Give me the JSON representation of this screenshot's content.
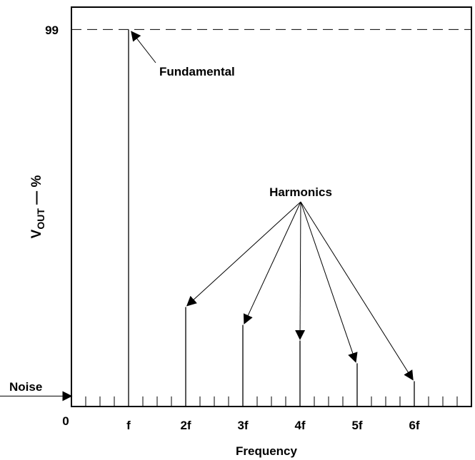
{
  "chart_data": {
    "type": "bar",
    "title": "",
    "xlabel": "Frequency",
    "ylabel": {
      "main": "V",
      "subscript": "OUT",
      "suffix": " — %"
    },
    "categories": [
      "f",
      "2f",
      "3f",
      "4f",
      "5f",
      "6f"
    ],
    "values": [
      99,
      24.5,
      19.7,
      15.5,
      9.4,
      4.6
    ],
    "ytick_label": "99",
    "origin_label": "0",
    "noise_label": "Noise",
    "noise_level": 0.5,
    "reference_line": 99,
    "ylim": [
      -2.2,
      105
    ],
    "annotations": {
      "fundamental": "Fundamental",
      "harmonics": "Harmonics"
    },
    "colors": {
      "ink": "#000000",
      "background": "#ffffff"
    }
  }
}
